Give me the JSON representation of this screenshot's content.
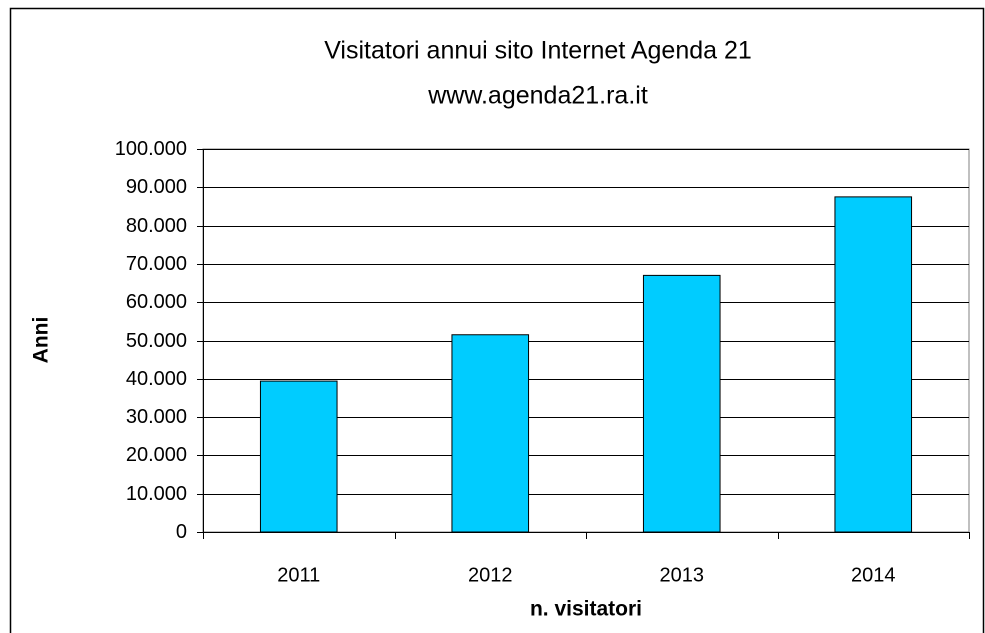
{
  "chart_data": {
    "type": "bar",
    "title": "Visitatori annui sito Internet Agenda 21",
    "subtitle": "www.agenda21.ra.it",
    "x_label": "n. visitatori",
    "y_label": "Anni",
    "categories": [
      "2011",
      "2012",
      "2013",
      "2014"
    ],
    "values": [
      39400,
      51500,
      67000,
      87500
    ],
    "color": "#00ccff",
    "ylim": [
      0,
      100000
    ],
    "yticks": [
      0,
      {
        "value": 10000,
        "label": "10.000"
      },
      {
        "value": 20000,
        "label": "20.000"
      },
      {
        "value": 30000,
        "label": "30.000"
      },
      {
        "value": 40000,
        "label": "40.000"
      },
      {
        "value": 50000,
        "label": "50.000"
      },
      {
        "value": 60000,
        "label": "60.000"
      },
      {
        "value": 70000,
        "label": "70.000"
      },
      {
        "value": 80000,
        "label": "80.000"
      },
      {
        "value": 90000,
        "label": "90.000"
      },
      {
        "value": 100000,
        "label": "100.000"
      }
    ],
    "grid": true
  }
}
